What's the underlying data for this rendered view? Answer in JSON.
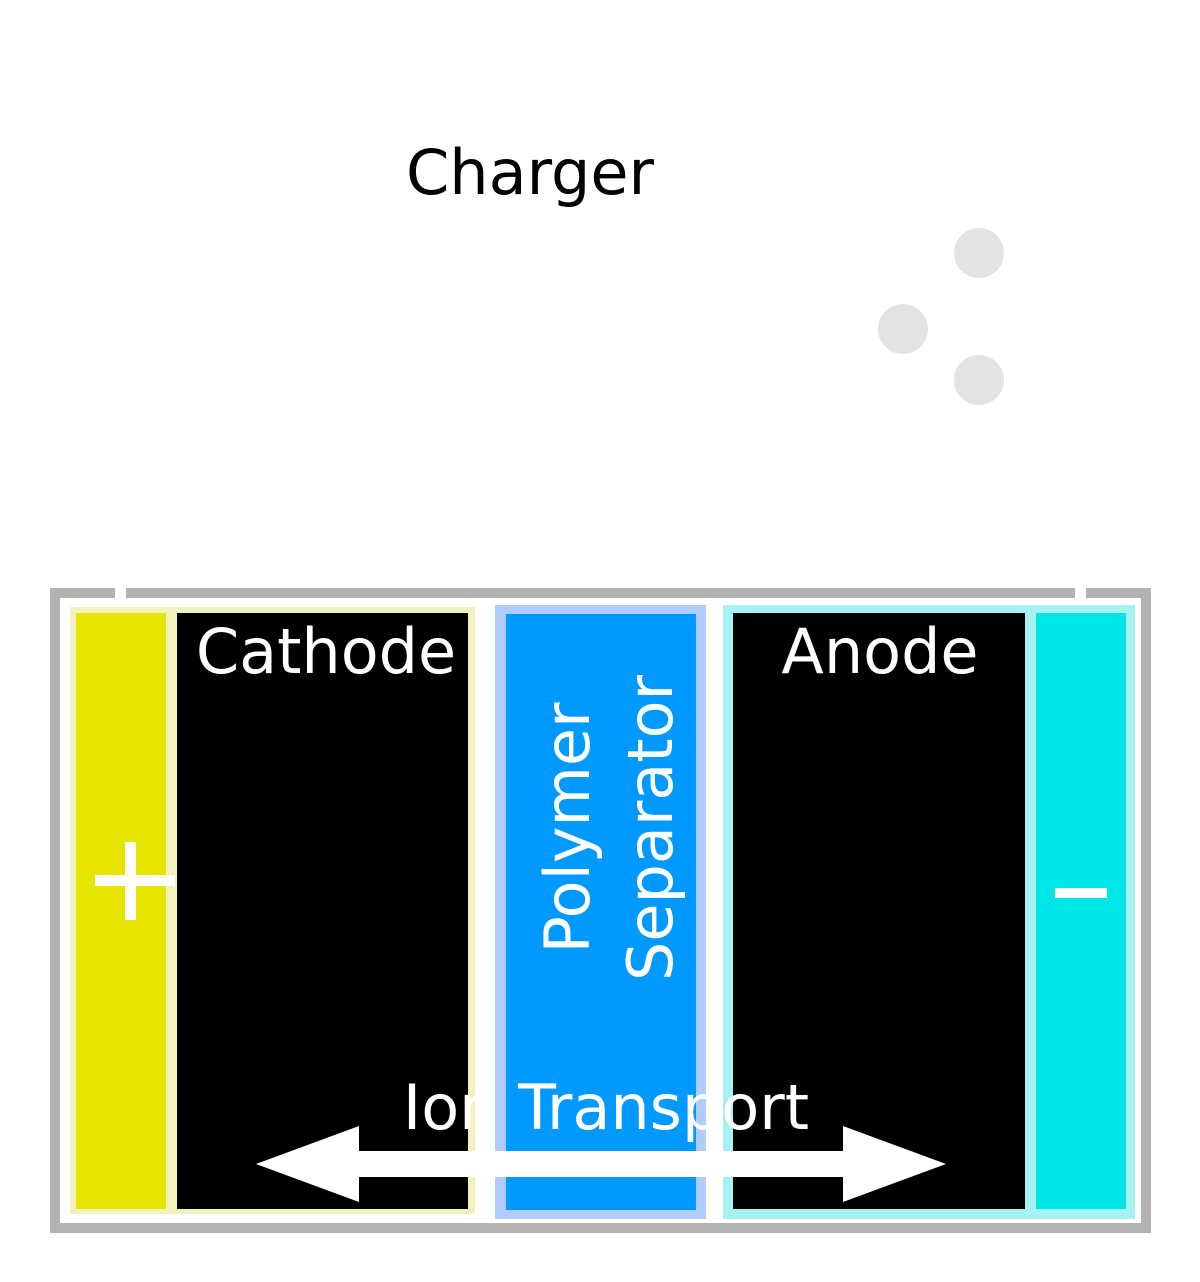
{
  "labels": {
    "charger": "Charger",
    "cathode": "Cathode",
    "anode": "Anode",
    "separator_line1": "Polymer",
    "separator_line2": "Separator",
    "ion_transport": "Ion Transport",
    "positive_terminal": "+",
    "negative_terminal": "−"
  },
  "colors": {
    "casing": "#b3b3b3",
    "cathode_collector": "#e5e500",
    "cathode_border": "#f2f2bf",
    "electrode_fill": "#000000",
    "separator_fill": "#0099ff",
    "separator_border": "#b3ccff",
    "anode_collector": "#00e5e5",
    "anode_border": "#a6f2f2",
    "ion_dots": "#e3e3e3",
    "text_dark": "#000000",
    "text_light": "#ffffff"
  }
}
